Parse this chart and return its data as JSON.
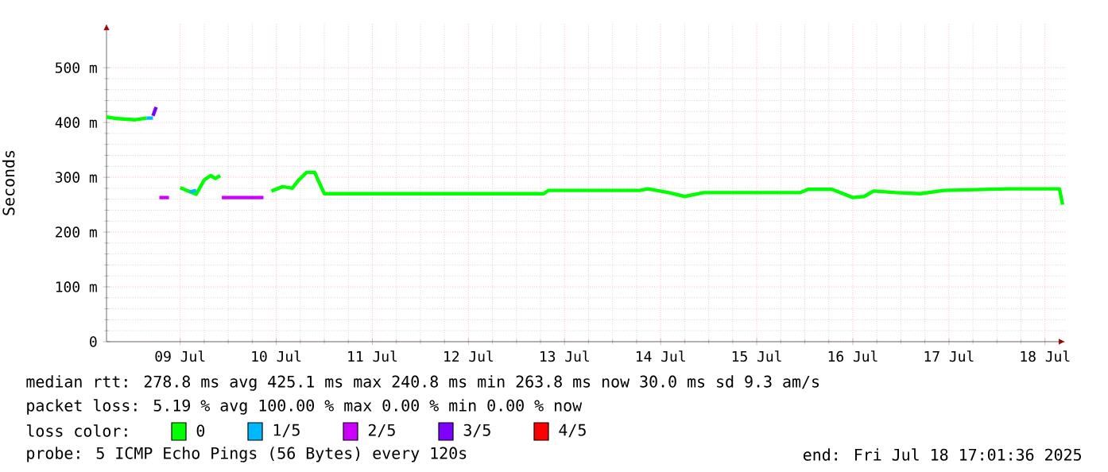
{
  "chart_data": {
    "type": "line",
    "ylabel": "Seconds",
    "xlim": [
      "2025-07-08T17:36",
      "2025-07-18T17:01"
    ],
    "ylim": [
      0,
      580
    ],
    "xticks": [
      {
        "value": "2025-07-09T12:00",
        "label": "09 Jul"
      },
      {
        "value": "2025-07-10T12:00",
        "label": "10 Jul"
      },
      {
        "value": "2025-07-11T12:00",
        "label": "11 Jul"
      },
      {
        "value": "2025-07-12T12:00",
        "label": "12 Jul"
      },
      {
        "value": "2025-07-13T12:00",
        "label": "13 Jul"
      },
      {
        "value": "2025-07-14T12:00",
        "label": "14 Jul"
      },
      {
        "value": "2025-07-15T12:00",
        "label": "15 Jul"
      },
      {
        "value": "2025-07-16T12:00",
        "label": "16 Jul"
      },
      {
        "value": "2025-07-17T12:00",
        "label": "17 Jul"
      },
      {
        "value": "2025-07-18T12:00",
        "label": "18 Jul"
      }
    ],
    "yticks": [
      {
        "value": 0,
        "label": "0"
      },
      {
        "value": 100,
        "label": "100 m"
      },
      {
        "value": 200,
        "label": "200 m"
      },
      {
        "value": 300,
        "label": "300 m"
      },
      {
        "value": 400,
        "label": "400 m"
      },
      {
        "value": 500,
        "label": "500 m"
      }
    ],
    "grid": true,
    "legend": "bottom",
    "legend_title": "loss color:",
    "series": [
      {
        "name": "0",
        "color": "#00ff00",
        "x": [
          "2025-07-08T17:36",
          "2025-07-08T20:24",
          "2025-07-09T00:48",
          "2025-07-09T03:36",
          "2025-07-09T05:12",
          "2025-07-09T07:12",
          "2025-07-09T12:00",
          "2025-07-09T16:00",
          "2025-07-09T18:00",
          "2025-07-09T19:36",
          "2025-07-09T20:48",
          "2025-07-09T22:00",
          "2025-07-10T04:48",
          "2025-07-10T10:48",
          "2025-07-10T13:36",
          "2025-07-10T16:00",
          "2025-07-10T17:36",
          "2025-07-10T19:36",
          "2025-07-10T21:36",
          "2025-07-10T22:48",
          "2025-07-11T00:00",
          "2025-07-12T00:00",
          "2025-07-13T06:48",
          "2025-07-13T08:00",
          "2025-07-14T06:48",
          "2025-07-14T08:48",
          "2025-07-14T14:00",
          "2025-07-14T18:00",
          "2025-07-14T22:48",
          "2025-07-15T22:48",
          "2025-07-16T00:48",
          "2025-07-16T06:48",
          "2025-07-16T12:00",
          "2025-07-16T14:48",
          "2025-07-16T17:12",
          "2025-07-16T22:48",
          "2025-07-17T04:48",
          "2025-07-17T10:48",
          "2025-07-18T02:48",
          "2025-07-18T15:36",
          "2025-07-18T16:24"
        ],
        "values": [
          410,
          407,
          405,
          408,
          null,
          null,
          281,
          269,
          295,
          303,
          298,
          303,
          null,
          275,
          283,
          280,
          295,
          309,
          309,
          289,
          270,
          270,
          270,
          276,
          276,
          279,
          272,
          265,
          272,
          272,
          278,
          278,
          263,
          265,
          275,
          272,
          270,
          276,
          279,
          279,
          250
        ]
      },
      {
        "name": "1/5",
        "color": "#00b8ff",
        "x": [
          "2025-07-09T03:36",
          "2025-07-09T05:12",
          "2025-07-09T09:36",
          "2025-07-09T14:24",
          "2025-07-09T16:00"
        ],
        "values": [
          408,
          408,
          null,
          273,
          276
        ]
      },
      {
        "name": "2/5",
        "color": "#cc00ff",
        "x": [
          "2025-07-09T06:48",
          "2025-07-09T09:12",
          "2025-07-09T12:00",
          "2025-07-09T22:24",
          "2025-07-10T08:48"
        ],
        "values": [
          263,
          263,
          null,
          263,
          263
        ]
      },
      {
        "name": "3/5",
        "color": "#7e00ff",
        "x": [
          "2025-07-09T05:12",
          "2025-07-09T06:00"
        ],
        "values": [
          412,
          428
        ]
      },
      {
        "name": "4/5",
        "color": "#ff0000"
      }
    ],
    "annotations": [
      "median rtt: 278.8 ms avg 425.1 ms max 240.8 ms min 263.8 ms now 30.0 ms sd 9.3 am/s",
      "packet loss: 5.19 % avg 100.00 % max 0.00 % min 0.00 % now",
      "probe: 5 ICMP Echo Pings (56 Bytes) every 120s",
      "end: Fri Jul 18 17:01:36 2025"
    ]
  }
}
